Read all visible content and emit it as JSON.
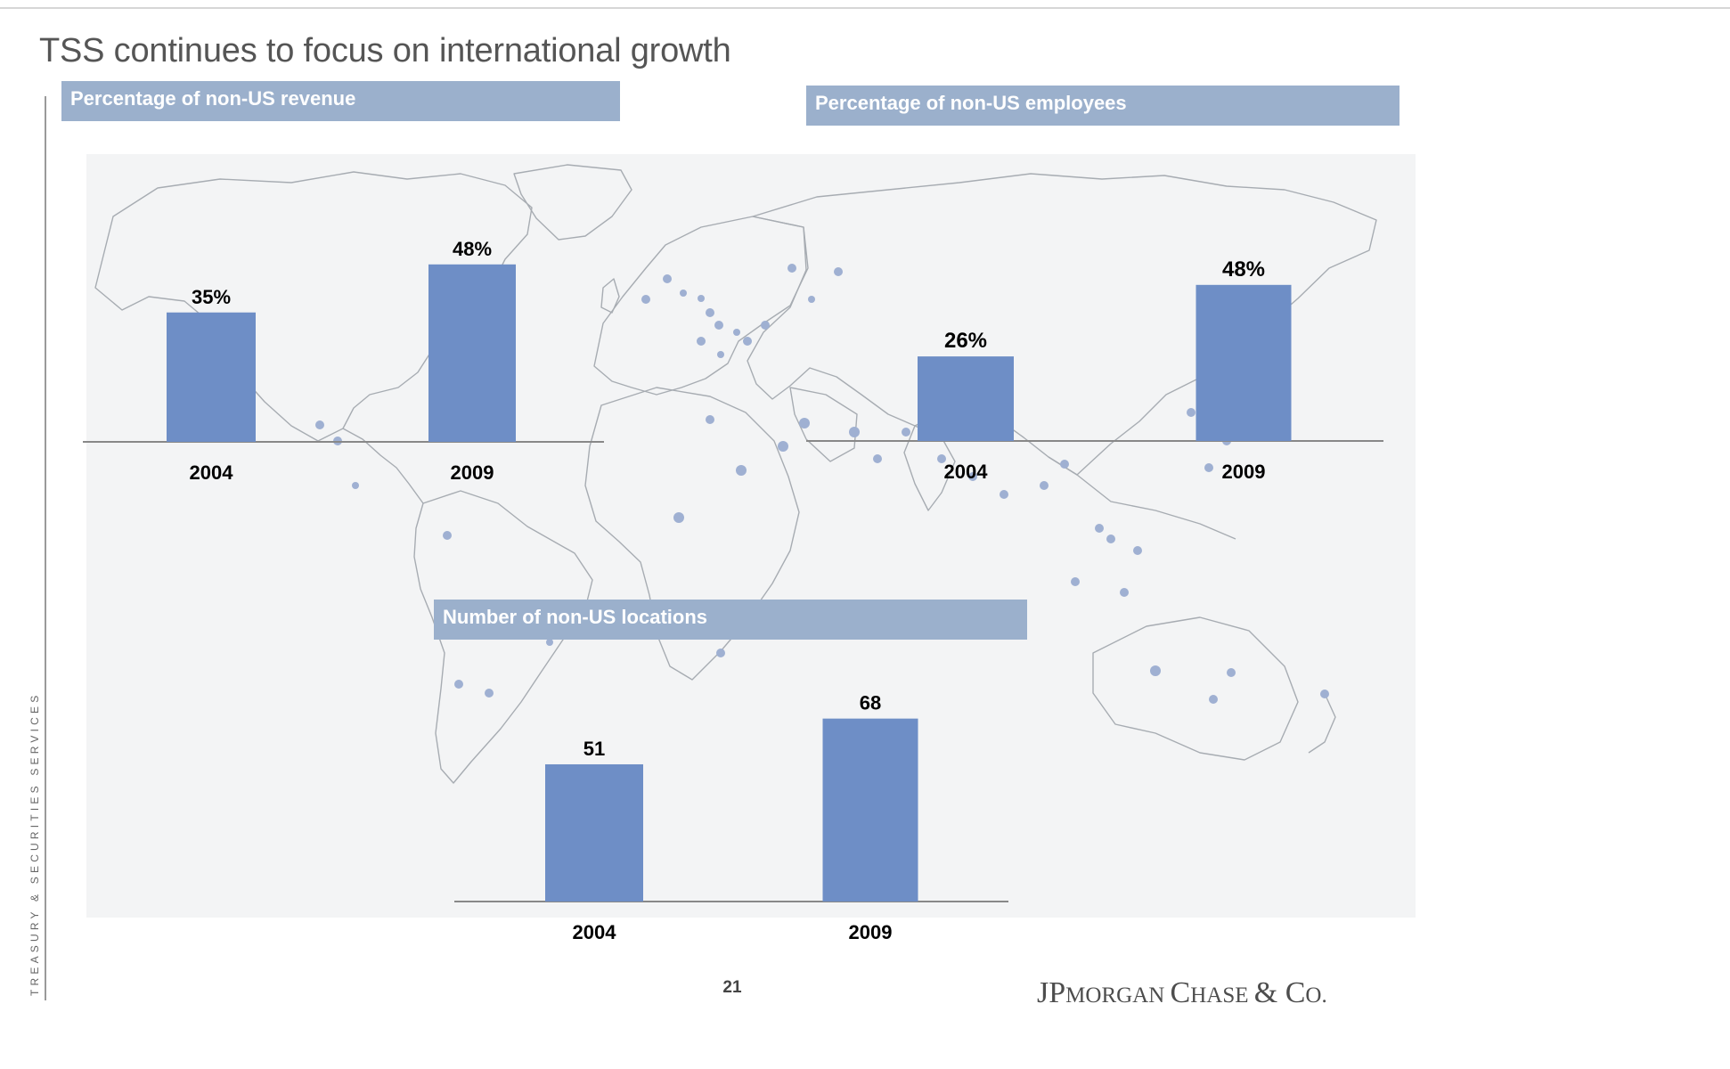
{
  "slide": {
    "title": "TSS continues to focus on international growth",
    "side_label": "TREASURY & SECURITIES SERVICES",
    "page_number": "21",
    "logo": {
      "big_j": "J",
      "big_p": "P",
      "morgan": "MORGAN ",
      "big_c": "C",
      "hase": "HASE ",
      "amp": "& ",
      "co_c": "C",
      "co_rest": "O."
    }
  },
  "colors": {
    "bar": "#6e8ec6",
    "header": "#9bb0cc",
    "axis": "#888888",
    "map_bg": "#f3f4f5",
    "map_line": "#a7acb2",
    "location_dot": "#9fb0d2"
  },
  "panels": [
    {
      "header": "Percentage of non-US revenue"
    },
    {
      "header": "Percentage of non-US employees"
    },
    {
      "header": "Number of non-US locations"
    }
  ],
  "chart_data": [
    {
      "type": "bar",
      "title": "Percentage of non-US revenue",
      "categories": [
        "2004",
        "2009"
      ],
      "values": [
        35,
        48
      ],
      "labels": [
        "35%",
        "48%"
      ],
      "unit": "%",
      "ylim": [
        0,
        55
      ]
    },
    {
      "type": "bar",
      "title": "Percentage of non-US employees",
      "categories": [
        "2004",
        "2009"
      ],
      "values": [
        26,
        48
      ],
      "labels": [
        "26%",
        "48%"
      ],
      "unit": "%",
      "ylim": [
        0,
        55
      ]
    },
    {
      "type": "bar",
      "title": "Number of non-US locations",
      "categories": [
        "2004",
        "2009"
      ],
      "values": [
        51,
        68
      ],
      "labels": [
        "51",
        "68"
      ],
      "ylim": [
        0,
        80
      ]
    }
  ]
}
